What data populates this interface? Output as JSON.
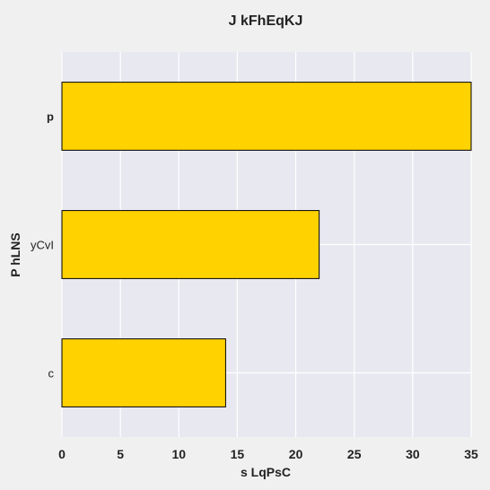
{
  "chart_data": {
    "type": "bar",
    "orientation": "horizontal",
    "title": "J kFhEqKJ",
    "xlabel": "s LqPsC",
    "ylabel": "P hLNS",
    "categories": [
      "p",
      "yCvI",
      "c"
    ],
    "category_styles": [
      "bold",
      "normal",
      "normal"
    ],
    "values": [
      35,
      22,
      14
    ],
    "xlim": [
      0,
      35
    ],
    "xticks": [
      0,
      5,
      10,
      15,
      20,
      25,
      30,
      35
    ],
    "grid": true,
    "colors": {
      "bar": "#ffd200",
      "bar_edge": "#000000",
      "plot_bg": "#e8e8f0",
      "grid": "#ffffff",
      "page_bg": "#f0f0f0"
    }
  }
}
